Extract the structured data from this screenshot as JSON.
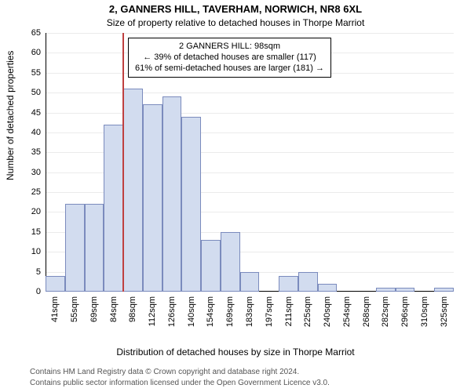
{
  "title": "2, GANNERS HILL, TAVERHAM, NORWICH, NR8 6XL",
  "subtitle": "Size of property relative to detached houses in Thorpe Marriot",
  "ylabel": "Number of detached properties",
  "xlabel": "Distribution of detached houses by size in Thorpe Marriot",
  "footer1": "Contains HM Land Registry data © Crown copyright and database right 2024.",
  "footer2": "Contains public sector information licensed under the Open Government Licence v3.0.",
  "title_fontsize": 13,
  "subtitle_fontsize": 12,
  "axis_label_fontsize": 12,
  "tick_fontsize": 11,
  "footer_fontsize": 10,
  "annotation_fontsize": 11,
  "chart": {
    "type": "histogram",
    "bar_fill": "#d2dcef",
    "bar_stroke": "#7b8bbd",
    "bar_stroke_width": 1,
    "grid_color": "#000000",
    "grid_opacity": 0.08,
    "background": "#ffffff",
    "y": {
      "min": 0,
      "max": 65,
      "step": 5
    },
    "x_categories": [
      "41sqm",
      "55sqm",
      "69sqm",
      "84sqm",
      "98sqm",
      "112sqm",
      "126sqm",
      "140sqm",
      "154sqm",
      "169sqm",
      "183sqm",
      "197sqm",
      "211sqm",
      "225sqm",
      "240sqm",
      "254sqm",
      "268sqm",
      "282sqm",
      "296sqm",
      "310sqm",
      "325sqm"
    ],
    "values": [
      4,
      22,
      22,
      42,
      51,
      47,
      49,
      44,
      13,
      15,
      5,
      0,
      4,
      5,
      2,
      0,
      0,
      1,
      1,
      0,
      1
    ],
    "refline": {
      "index": 4,
      "color": "#bf4040",
      "width": 2
    }
  },
  "annotation": {
    "line1": "2 GANNERS HILL: 98sqm",
    "line2": "← 39% of detached houses are smaller (117)",
    "line3": "61% of semi-detached houses are larger (181) →",
    "border_color": "#000000",
    "background": "#ffffff"
  }
}
